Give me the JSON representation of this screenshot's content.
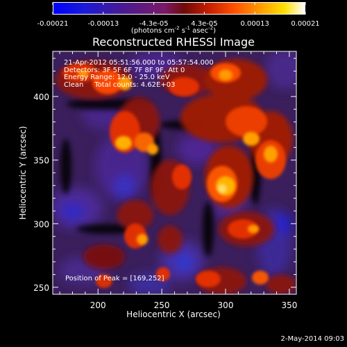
{
  "colorbar": {
    "ticks": [
      "-0.00021",
      "-0.00013",
      "-4.3e-05",
      "4.3e-05",
      "0.00013",
      "0.00021"
    ],
    "units_prefix": "(photons cm",
    "units_exp1": "-2",
    "units_mid1": " s",
    "units_exp2": "-1",
    "units_mid2": " asec",
    "units_exp3": "-2",
    "units_suffix": ")"
  },
  "title": "Reconstructed RHESSI Image",
  "overlay": {
    "time_range": "21-Apr-2012 05:51:56.000 to 05:57:54.000",
    "detectors": "Detectors: 3F 5F 6F 7F 8F 9F, Att 0",
    "energy_range": "Energy Range: 12.0 - 25.0 keV",
    "clean": "Clean     Total counts: 4.62E+03"
  },
  "peak_position": "Position of Peak = [169,252]",
  "axes": {
    "xlabel": "Heliocentric X (arcsec)",
    "ylabel": "Heliocentric Y (arcsec)",
    "xticks": [
      "200",
      "250",
      "300",
      "350"
    ],
    "yticks": [
      "250",
      "300",
      "350",
      "400"
    ]
  },
  "timestamp": "2-May-2014 09:03"
}
